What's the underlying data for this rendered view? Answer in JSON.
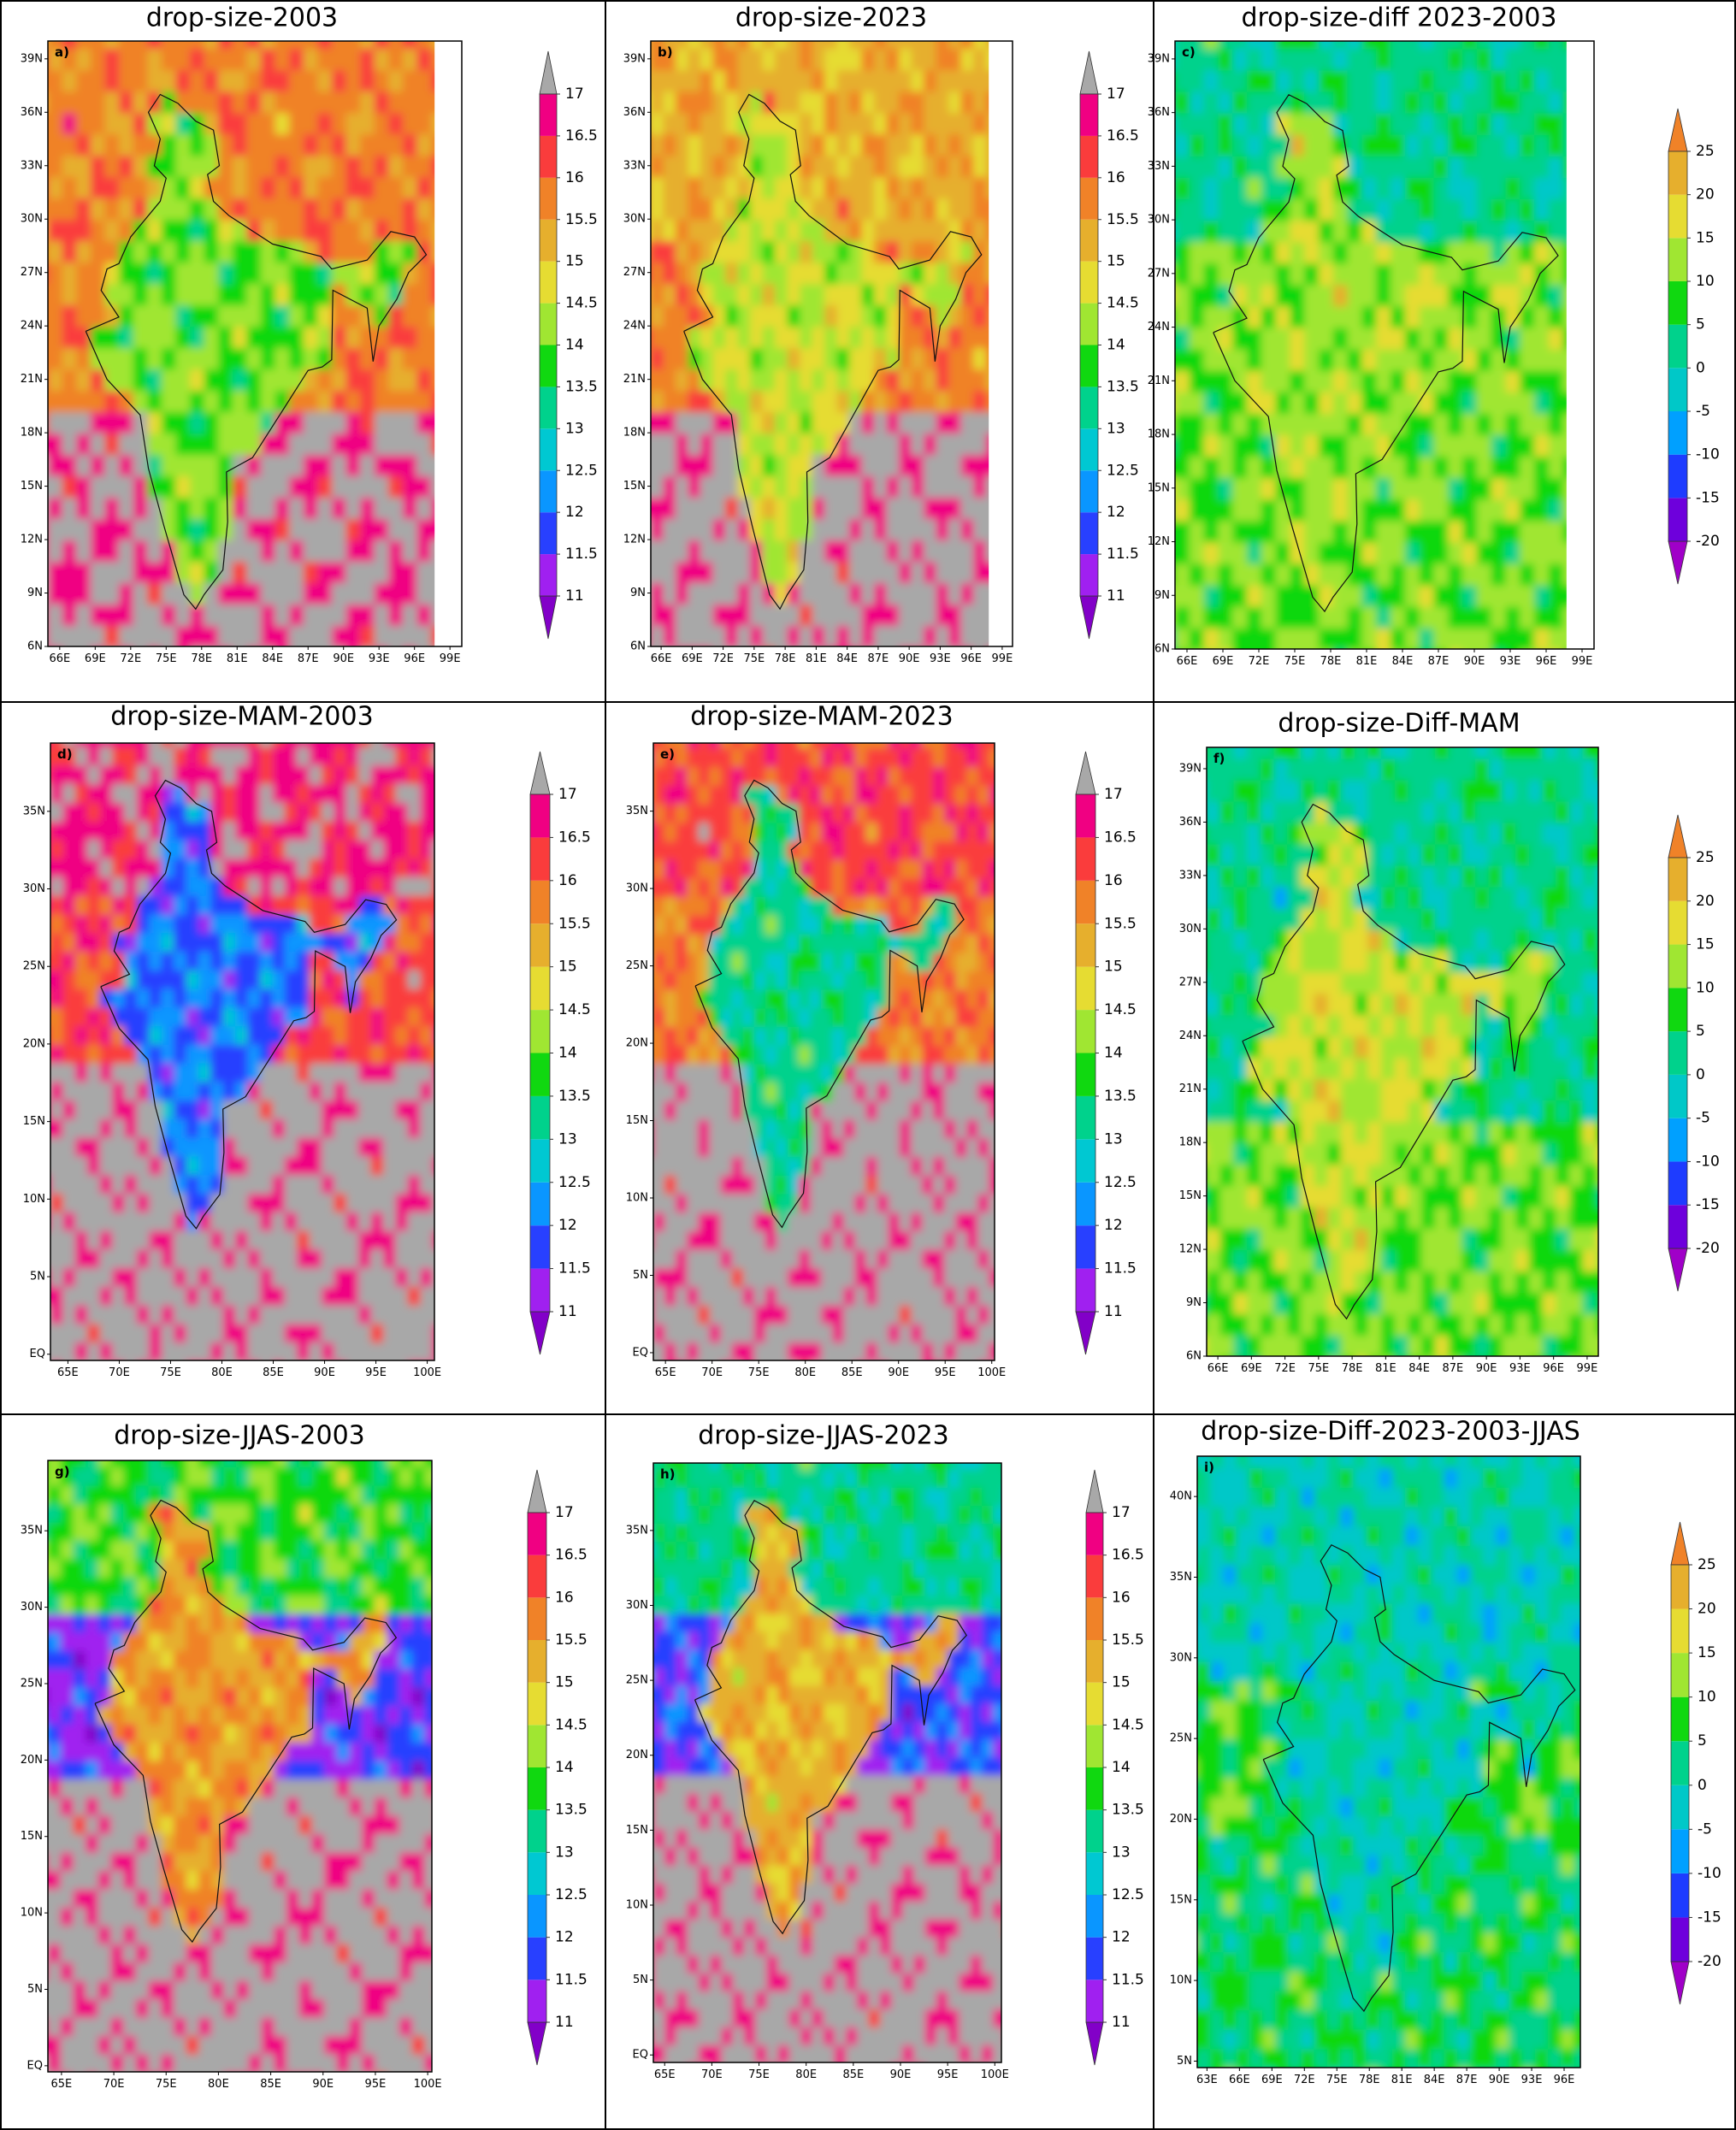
{
  "panels": [
    {
      "title": "drop-size-2003",
      "label": "a)",
      "xlim": [
        65,
        100
      ],
      "ylim": [
        6,
        40
      ],
      "xticks": [
        {
          "value": 66,
          "label": "66E"
        },
        {
          "value": 69,
          "label": "69E"
        },
        {
          "value": 72,
          "label": "72E"
        },
        {
          "value": 75,
          "label": "75E"
        },
        {
          "value": 78,
          "label": "78E"
        },
        {
          "value": 81,
          "label": "81E"
        },
        {
          "value": 84,
          "label": "84E"
        },
        {
          "value": 87,
          "label": "87E"
        },
        {
          "value": 90,
          "label": "90E"
        },
        {
          "value": 93,
          "label": "93E"
        },
        {
          "value": 96,
          "label": "96E"
        },
        {
          "value": 99,
          "label": "99E"
        }
      ],
      "yticks": [
        {
          "value": 6,
          "label": "6N"
        },
        {
          "value": 9,
          "label": "9N"
        },
        {
          "value": 12,
          "label": "12N"
        },
        {
          "value": 15,
          "label": "15N"
        },
        {
          "value": 18,
          "label": "18N"
        },
        {
          "value": 21,
          "label": "21N"
        },
        {
          "value": 24,
          "label": "24N"
        },
        {
          "value": 27,
          "label": "27N"
        },
        {
          "value": 30,
          "label": "30N"
        },
        {
          "value": 33,
          "label": "33N"
        },
        {
          "value": 36,
          "label": "36N"
        },
        {
          "value": 39,
          "label": "39N"
        }
      ],
      "colorbar": {
        "ticks": [
          11,
          11.5,
          12,
          12.5,
          13,
          13.5,
          14,
          14.5,
          15,
          15.5,
          16,
          16.5,
          17
        ],
        "colors": [
          "#8200c8",
          "#a020f0",
          "#2840ff",
          "#0a96ff",
          "#00c8d2",
          "#00d28c",
          "#10d810",
          "#a0e632",
          "#e6dc32",
          "#e6af2d",
          "#f08228",
          "#fa3c3c",
          "#f00082",
          "#a8a8a8"
        ]
      }
    },
    {
      "title": "drop-size-2023",
      "label": "b)",
      "xlim": [
        65,
        100
      ],
      "ylim": [
        6,
        40
      ],
      "xticks": [
        {
          "value": 66,
          "label": "66E"
        },
        {
          "value": 69,
          "label": "69E"
        },
        {
          "value": 72,
          "label": "72E"
        },
        {
          "value": 75,
          "label": "75E"
        },
        {
          "value": 78,
          "label": "78E"
        },
        {
          "value": 81,
          "label": "81E"
        },
        {
          "value": 84,
          "label": "84E"
        },
        {
          "value": 87,
          "label": "87E"
        },
        {
          "value": 90,
          "label": "90E"
        },
        {
          "value": 93,
          "label": "93E"
        },
        {
          "value": 96,
          "label": "96E"
        },
        {
          "value": 99,
          "label": "99E"
        }
      ],
      "yticks": [
        {
          "value": 6,
          "label": "6N"
        },
        {
          "value": 9,
          "label": "9N"
        },
        {
          "value": 12,
          "label": "12N"
        },
        {
          "value": 15,
          "label": "15N"
        },
        {
          "value": 18,
          "label": "18N"
        },
        {
          "value": 21,
          "label": "21N"
        },
        {
          "value": 24,
          "label": "24N"
        },
        {
          "value": 27,
          "label": "27N"
        },
        {
          "value": 30,
          "label": "30N"
        },
        {
          "value": 33,
          "label": "33N"
        },
        {
          "value": 36,
          "label": "36N"
        },
        {
          "value": 39,
          "label": "39N"
        }
      ],
      "colorbar": {
        "ticks": [
          11,
          11.5,
          12,
          12.5,
          13,
          13.5,
          14,
          14.5,
          15,
          15.5,
          16,
          16.5,
          17
        ],
        "colors": [
          "#8200c8",
          "#a020f0",
          "#2840ff",
          "#0a96ff",
          "#00c8d2",
          "#00d28c",
          "#10d810",
          "#a0e632",
          "#e6dc32",
          "#e6af2d",
          "#f08228",
          "#fa3c3c",
          "#f00082",
          "#a8a8a8"
        ]
      }
    },
    {
      "title": "drop-size-diff 2023-2003",
      "label": "c)",
      "xlim": [
        65,
        100
      ],
      "ylim": [
        6,
        40
      ],
      "xticks": [
        {
          "value": 66,
          "label": "66E"
        },
        {
          "value": 69,
          "label": "69E"
        },
        {
          "value": 72,
          "label": "72E"
        },
        {
          "value": 75,
          "label": "75E"
        },
        {
          "value": 78,
          "label": "78E"
        },
        {
          "value": 81,
          "label": "81E"
        },
        {
          "value": 84,
          "label": "84E"
        },
        {
          "value": 87,
          "label": "87E"
        },
        {
          "value": 90,
          "label": "90E"
        },
        {
          "value": 93,
          "label": "93E"
        },
        {
          "value": 96,
          "label": "96E"
        },
        {
          "value": 99,
          "label": "99E"
        }
      ],
      "yticks": [
        {
          "value": 6,
          "label": "6N"
        },
        {
          "value": 9,
          "label": "9N"
        },
        {
          "value": 12,
          "label": "12N"
        },
        {
          "value": 15,
          "label": "15N"
        },
        {
          "value": 18,
          "label": "18N"
        },
        {
          "value": 21,
          "label": "21N"
        },
        {
          "value": 24,
          "label": "24N"
        },
        {
          "value": 27,
          "label": "27N"
        },
        {
          "value": 30,
          "label": "30N"
        },
        {
          "value": 33,
          "label": "33N"
        },
        {
          "value": 36,
          "label": "36N"
        },
        {
          "value": 39,
          "label": "39N"
        }
      ],
      "colorbar": {
        "ticks": [
          -20,
          -15,
          -10,
          -5,
          0,
          5,
          10,
          15,
          20,
          25
        ],
        "colors": [
          "#a000c8",
          "#6e00dc",
          "#1e3cff",
          "#00a0ff",
          "#00c8c8",
          "#00d28c",
          "#10d810",
          "#a0e632",
          "#e6dc32",
          "#e6af2d",
          "#f08228"
        ]
      }
    },
    {
      "title": "drop-size-MAM-2003",
      "label": "d)",
      "xlim": [
        63.3,
        100.7
      ],
      "ylim": [
        -0.4,
        39.4
      ],
      "xticks": [
        {
          "value": 65,
          "label": "65E"
        },
        {
          "value": 70,
          "label": "70E"
        },
        {
          "value": 75,
          "label": "75E"
        },
        {
          "value": 80,
          "label": "80E"
        },
        {
          "value": 85,
          "label": "85E"
        },
        {
          "value": 90,
          "label": "90E"
        },
        {
          "value": 95,
          "label": "95E"
        },
        {
          "value": 100,
          "label": "100E"
        }
      ],
      "yticks": [
        {
          "value": 0,
          "label": "EQ"
        },
        {
          "value": 5,
          "label": "5N"
        },
        {
          "value": 10,
          "label": "10N"
        },
        {
          "value": 15,
          "label": "15N"
        },
        {
          "value": 20,
          "label": "20N"
        },
        {
          "value": 25,
          "label": "25N"
        },
        {
          "value": 30,
          "label": "30N"
        },
        {
          "value": 35,
          "label": "35N"
        }
      ],
      "colorbar": {
        "ticks": [
          11,
          11.5,
          12,
          12.5,
          13,
          13.5,
          14,
          14.5,
          15,
          15.5,
          16,
          16.5,
          17
        ],
        "colors": [
          "#8200c8",
          "#a020f0",
          "#2840ff",
          "#0a96ff",
          "#00c8d2",
          "#00d28c",
          "#10d810",
          "#a0e632",
          "#e6dc32",
          "#e6af2d",
          "#f08228",
          "#fa3c3c",
          "#f00082",
          "#a8a8a8"
        ]
      }
    },
    {
      "title": "drop-size-MAM-2023",
      "label": "e)",
      "xlim": [
        63.7,
        100.3
      ],
      "ylim": [
        -0.5,
        39.4
      ],
      "xticks": [
        {
          "value": 65,
          "label": "65E"
        },
        {
          "value": 70,
          "label": "70E"
        },
        {
          "value": 75,
          "label": "75E"
        },
        {
          "value": 80,
          "label": "80E"
        },
        {
          "value": 85,
          "label": "85E"
        },
        {
          "value": 90,
          "label": "90E"
        },
        {
          "value": 95,
          "label": "95E"
        },
        {
          "value": 100,
          "label": "100E"
        }
      ],
      "yticks": [
        {
          "value": 0,
          "label": "EQ"
        },
        {
          "value": 5,
          "label": "5N"
        },
        {
          "value": 10,
          "label": "10N"
        },
        {
          "value": 15,
          "label": "15N"
        },
        {
          "value": 20,
          "label": "20N"
        },
        {
          "value": 25,
          "label": "25N"
        },
        {
          "value": 30,
          "label": "30N"
        },
        {
          "value": 35,
          "label": "35N"
        }
      ],
      "colorbar": {
        "ticks": [
          11,
          11.5,
          12,
          12.5,
          13,
          13.5,
          14,
          14.5,
          15,
          15.5,
          16,
          16.5,
          17
        ],
        "colors": [
          "#8200c8",
          "#a020f0",
          "#2840ff",
          "#0a96ff",
          "#00c8d2",
          "#00d28c",
          "#10d810",
          "#a0e632",
          "#e6dc32",
          "#e6af2d",
          "#f08228",
          "#fa3c3c",
          "#f00082",
          "#a8a8a8"
        ]
      }
    },
    {
      "title": "drop-size-Diff-MAM",
      "label": "f)",
      "xlim": [
        65,
        100
      ],
      "ylim": [
        6,
        40.2
      ],
      "xticks": [
        {
          "value": 66,
          "label": "66E"
        },
        {
          "value": 69,
          "label": "69E"
        },
        {
          "value": 72,
          "label": "72E"
        },
        {
          "value": 75,
          "label": "75E"
        },
        {
          "value": 78,
          "label": "78E"
        },
        {
          "value": 81,
          "label": "81E"
        },
        {
          "value": 84,
          "label": "84E"
        },
        {
          "value": 87,
          "label": "87E"
        },
        {
          "value": 90,
          "label": "90E"
        },
        {
          "value": 93,
          "label": "93E"
        },
        {
          "value": 96,
          "label": "96E"
        },
        {
          "value": 99,
          "label": "99E"
        }
      ],
      "yticks": [
        {
          "value": 6,
          "label": "6N"
        },
        {
          "value": 9,
          "label": "9N"
        },
        {
          "value": 12,
          "label": "12N"
        },
        {
          "value": 15,
          "label": "15N"
        },
        {
          "value": 18,
          "label": "18N"
        },
        {
          "value": 21,
          "label": "21N"
        },
        {
          "value": 24,
          "label": "24N"
        },
        {
          "value": 27,
          "label": "27N"
        },
        {
          "value": 30,
          "label": "30N"
        },
        {
          "value": 33,
          "label": "33N"
        },
        {
          "value": 36,
          "label": "36N"
        },
        {
          "value": 39,
          "label": "39N"
        }
      ],
      "colorbar": {
        "ticks": [
          -20,
          -15,
          -10,
          -5,
          0,
          5,
          10,
          15,
          20,
          25
        ],
        "colors": [
          "#a000c8",
          "#6e00dc",
          "#1e3cff",
          "#00a0ff",
          "#00c8c8",
          "#00d28c",
          "#10d810",
          "#a0e632",
          "#e6dc32",
          "#e6af2d",
          "#f08228"
        ]
      }
    },
    {
      "title": "drop-size-JJAS-2003",
      "label": "g)",
      "xlim": [
        63.7,
        100.4
      ],
      "ylim": [
        -0.4,
        39.6
      ],
      "xticks": [
        {
          "value": 65,
          "label": "65E"
        },
        {
          "value": 70,
          "label": "70E"
        },
        {
          "value": 75,
          "label": "75E"
        },
        {
          "value": 80,
          "label": "80E"
        },
        {
          "value": 85,
          "label": "85E"
        },
        {
          "value": 90,
          "label": "90E"
        },
        {
          "value": 95,
          "label": "95E"
        },
        {
          "value": 100,
          "label": "100E"
        }
      ],
      "yticks": [
        {
          "value": 0,
          "label": "EQ"
        },
        {
          "value": 5,
          "label": "5N"
        },
        {
          "value": 10,
          "label": "10N"
        },
        {
          "value": 15,
          "label": "15N"
        },
        {
          "value": 20,
          "label": "20N"
        },
        {
          "value": 25,
          "label": "25N"
        },
        {
          "value": 30,
          "label": "30N"
        },
        {
          "value": 35,
          "label": "35N"
        }
      ],
      "colorbar": {
        "ticks": [
          11,
          11.5,
          12,
          12.5,
          13,
          13.5,
          14,
          14.5,
          15,
          15.5,
          16,
          16.5,
          17
        ],
        "colors": [
          "#8200c8",
          "#a020f0",
          "#2840ff",
          "#0a96ff",
          "#00c8d2",
          "#00d28c",
          "#10d810",
          "#a0e632",
          "#e6dc32",
          "#e6af2d",
          "#f08228",
          "#fa3c3c",
          "#f00082",
          "#a8a8a8"
        ]
      }
    },
    {
      "title": "drop-size-JJAS-2023",
      "label": "h)",
      "xlim": [
        63.8,
        100.7
      ],
      "ylim": [
        -0.5,
        39.5
      ],
      "xticks": [
        {
          "value": 65,
          "label": "65E"
        },
        {
          "value": 70,
          "label": "70E"
        },
        {
          "value": 75,
          "label": "75E"
        },
        {
          "value": 80,
          "label": "80E"
        },
        {
          "value": 85,
          "label": "85E"
        },
        {
          "value": 90,
          "label": "90E"
        },
        {
          "value": 95,
          "label": "95E"
        },
        {
          "value": 100,
          "label": "100E"
        }
      ],
      "yticks": [
        {
          "value": 0,
          "label": "EQ"
        },
        {
          "value": 5,
          "label": "5N"
        },
        {
          "value": 10,
          "label": "10N"
        },
        {
          "value": 15,
          "label": "15N"
        },
        {
          "value": 20,
          "label": "20N"
        },
        {
          "value": 25,
          "label": "25N"
        },
        {
          "value": 30,
          "label": "30N"
        },
        {
          "value": 35,
          "label": "35N"
        }
      ],
      "colorbar": {
        "ticks": [
          11,
          11.5,
          12,
          12.5,
          13,
          13.5,
          14,
          14.5,
          15,
          15.5,
          16,
          16.5,
          17
        ],
        "colors": [
          "#8200c8",
          "#a020f0",
          "#2840ff",
          "#0a96ff",
          "#00c8d2",
          "#00d28c",
          "#10d810",
          "#a0e632",
          "#e6dc32",
          "#e6af2d",
          "#f08228",
          "#fa3c3c",
          "#f00082",
          "#a8a8a8"
        ]
      }
    },
    {
      "title": "drop-size-Diff-2023-2003-JJAS",
      "label": "i)",
      "xlim": [
        62.1,
        97.5
      ],
      "ylim": [
        4.6,
        42.5
      ],
      "xticks": [
        {
          "value": 63,
          "label": "63E"
        },
        {
          "value": 66,
          "label": "66E"
        },
        {
          "value": 69,
          "label": "69E"
        },
        {
          "value": 72,
          "label": "72E"
        },
        {
          "value": 75,
          "label": "75E"
        },
        {
          "value": 78,
          "label": "78E"
        },
        {
          "value": 81,
          "label": "81E"
        },
        {
          "value": 84,
          "label": "84E"
        },
        {
          "value": 87,
          "label": "87E"
        },
        {
          "value": 90,
          "label": "90E"
        },
        {
          "value": 93,
          "label": "93E"
        },
        {
          "value": 96,
          "label": "96E"
        }
      ],
      "yticks": [
        {
          "value": 5,
          "label": "5N"
        },
        {
          "value": 10,
          "label": "10N"
        },
        {
          "value": 15,
          "label": "15N"
        },
        {
          "value": 20,
          "label": "20N"
        },
        {
          "value": 25,
          "label": "25N"
        },
        {
          "value": 30,
          "label": "30N"
        },
        {
          "value": 35,
          "label": "35N"
        },
        {
          "value": 40,
          "label": "40N"
        }
      ],
      "colorbar": {
        "ticks": [
          -20,
          -15,
          -10,
          -5,
          0,
          5,
          10,
          15,
          20,
          25
        ],
        "colors": [
          "#a000c8",
          "#6e00dc",
          "#1e3cff",
          "#00a0ff",
          "#00c8c8",
          "#00d28c",
          "#10d810",
          "#a0e632",
          "#e6dc32",
          "#e6af2d",
          "#f08228"
        ]
      }
    }
  ]
}
